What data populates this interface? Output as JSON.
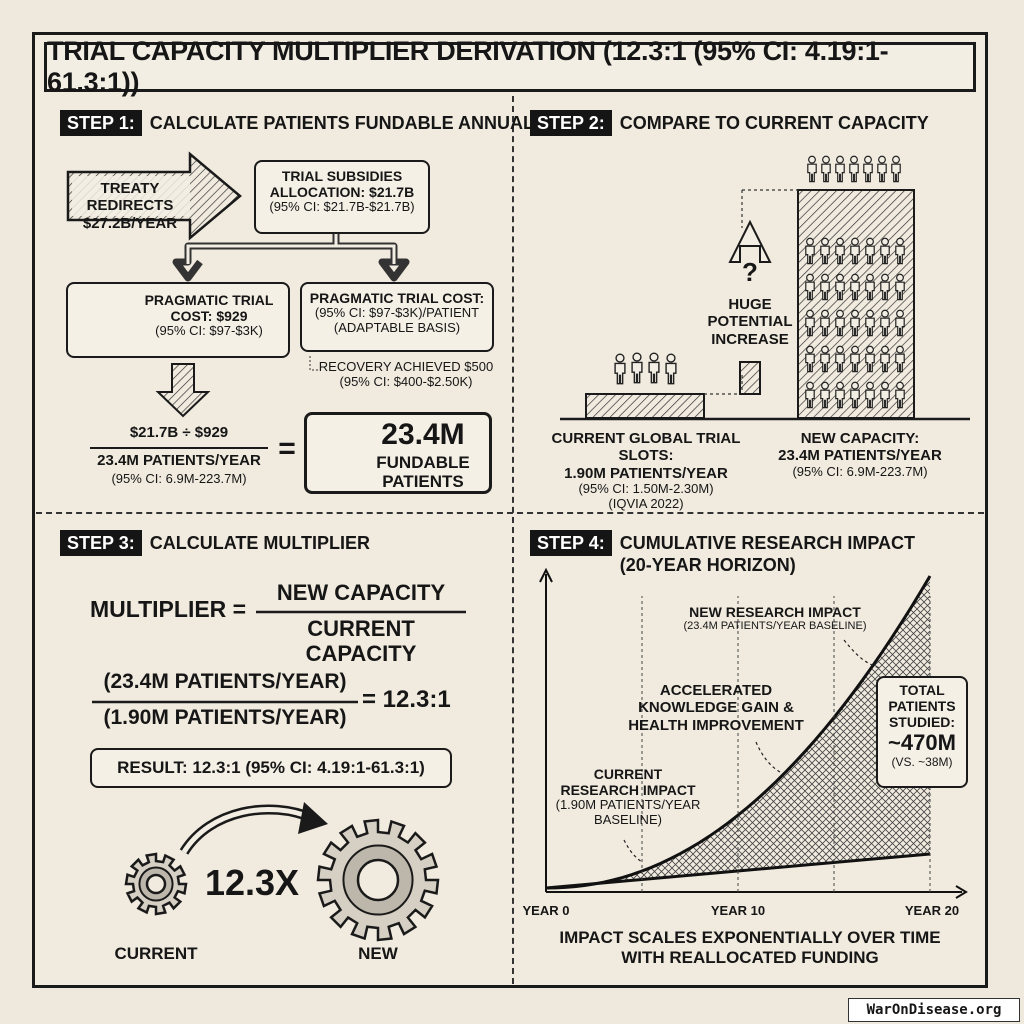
{
  "title": "TRIAL CAPACITY MULTIPLIER DERIVATION (12.3:1 (95% CI: 4.19:1-61.3:1))",
  "step1": {
    "badge": "STEP 1:",
    "heading": "CALCULATE PATIENTS FUNDABLE ANNUALLY",
    "treaty_line1": "TREATY REDIRECTS",
    "treaty_line2": "$27.2B/YEAR",
    "subsidies_line1": "TRIAL SUBSIDIES",
    "subsidies_line2": "ALLOCATION: $21.7B",
    "subsidies_ci": "(95% CI: $21.7B-$21.7B)",
    "pragmatic_left_line1": "PRAGMATIC TRIAL",
    "pragmatic_left_line2": "COST: $929",
    "pragmatic_left_ci": "(95% CI: $97-$3K)",
    "pragmatic_right_line1": "PRAGMATIC TRIAL COST:",
    "pragmatic_right_line2": "(95% CI: $97-$3K)/PATIENT",
    "pragmatic_right_line3": "(ADAPTABLE BASIS)",
    "recovery_line1": "RECOVERY ACHIEVED $500",
    "recovery_line2": "(95% CI: $400-$2.50K)",
    "calc_numerator": "$21.7B ÷ $929",
    "calc_result": "23.4M PATIENTS/YEAR",
    "calc_ci": "(95% CI: 6.9M-223.7M)",
    "equals": "=",
    "fundable_value": "23.4M",
    "fundable_label1": "FUNDABLE",
    "fundable_label2": "PATIENTS"
  },
  "step2": {
    "badge": "STEP 2:",
    "heading": "COMPARE TO CURRENT CAPACITY",
    "question": "?",
    "increase_line1": "HUGE",
    "increase_line2": "POTENTIAL",
    "increase_line3": "INCREASE",
    "current_line1": "CURRENT GLOBAL TRIAL SLOTS:",
    "current_line2": "1.90M PATIENTS/YEAR",
    "current_ci": "(95% CI: 1.50M-2.30M)",
    "current_source": "(IQVIA 2022)",
    "new_line1": "NEW CAPACITY:",
    "new_line2": "23.4M PATIENTS/YEAR",
    "new_ci": "(95% CI: 6.9M-223.7M)"
  },
  "step3": {
    "badge": "STEP 3:",
    "heading": "CALCULATE MULTIPLIER",
    "multiplier_label": "MULTIPLIER =",
    "frac_num": "NEW CAPACITY",
    "frac_den": "CURRENT CAPACITY",
    "calc_num": "(23.4M PATIENTS/YEAR)",
    "calc_den": "(1.90M PATIENTS/YEAR)",
    "calc_result": "= 12.3:1",
    "result": "RESULT: 12.3:1 (95% CI: 4.19:1-61.3:1)",
    "gear_value": "12.3X",
    "gear_current": "CURRENT",
    "gear_new": "NEW"
  },
  "step4": {
    "badge": "STEP 4:",
    "heading_line1": "CUMULATIVE RESEARCH IMPACT",
    "heading_line2": "(20-YEAR HORIZON)",
    "new_impact_line1": "NEW RESEARCH IMPACT",
    "new_impact_line2": "(23.4M PATIENTS/YEAR BASELINE)",
    "accel_line1": "ACCELERATED",
    "accel_line2": "KNOWLEDGE GAIN &",
    "accel_line3": "HEALTH IMPROVEMENT",
    "current_impact_line1": "CURRENT",
    "current_impact_line2": "RESEARCH IMPACT",
    "current_impact_line3": "(1.90M PATIENTS/YEAR",
    "current_impact_line4": "BASELINE)",
    "total_line1": "TOTAL",
    "total_line2": "PATIENTS",
    "total_line3": "STUDIED:",
    "total_value": "~470M",
    "total_vs": "(VS. ~38M)",
    "x_ticks": [
      "YEAR 0",
      "YEAR 10",
      "YEAR 20"
    ],
    "footer_line1": "IMPACT SCALES EXPONENTIALLY OVER TIME",
    "footer_line2": "WITH REALLOCATED FUNDING"
  },
  "watermark": "WarOnDisease.org"
}
